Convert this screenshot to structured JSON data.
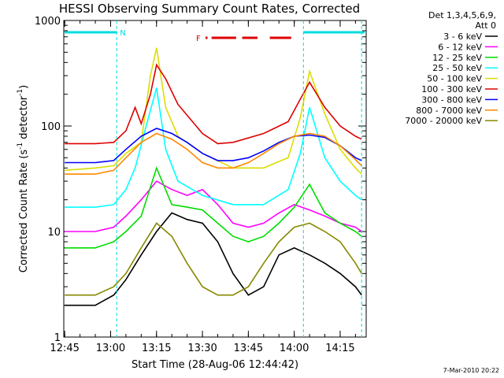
{
  "chart_data": {
    "type": "line",
    "title": "HESSI Observing Summary Count Rates, Corrected",
    "xlabel": "Start Time (28-Aug-06 12:44:42)",
    "ylabel_main": "Corrected Count Rate (s",
    "ylabel_sup1": "-1",
    "ylabel_mid": " detector",
    "ylabel_sup2": "-1",
    "ylabel_end": ")",
    "yscale": "log",
    "ylim": [
      1,
      1000
    ],
    "xlim": [
      "12:44:42",
      "14:23:30"
    ],
    "x_ticks": [
      "12:45",
      "13:00",
      "13:15",
      "13:30",
      "13:45",
      "14:00",
      "14:15"
    ],
    "y_ticks": [
      "1",
      "10",
      "100",
      "1000"
    ],
    "legend_header": [
      "Det 1,3,4,5,6,9,",
      "Att 0"
    ],
    "legend": [
      {
        "name": "3 - 6 keV",
        "color": "#000000"
      },
      {
        "name": "6 - 12 keV",
        "color": "#ff00ff"
      },
      {
        "name": "12 - 25 keV",
        "color": "#00dd00"
      },
      {
        "name": "25 - 50 keV",
        "color": "#00ffff"
      },
      {
        "name": "50 - 100 keV",
        "color": "#dddd00"
      },
      {
        "name": "100 - 300 keV",
        "color": "#dd0000"
      },
      {
        "name": "300 - 800 keV",
        "color": "#0000ff"
      },
      {
        "name": "800 - 7000 keV",
        "color": "#ff8800"
      },
      {
        "name": "7000 - 20000 keV",
        "color": "#888800"
      }
    ],
    "annotations": {
      "night_label": "N",
      "night_segments": [
        [
          "12:45",
          "13:02"
        ],
        [
          "14:03",
          "14:23"
        ]
      ],
      "flare_label": "F",
      "flare_segments": [
        [
          "13:31",
          "13:31:40"
        ],
        [
          "13:33",
          "13:41"
        ],
        [
          "13:43",
          "13:48"
        ],
        [
          "13:52",
          "13:59"
        ]
      ],
      "night_lines": [
        "13:02",
        "14:03",
        "14:22"
      ]
    },
    "series": [
      {
        "name": "3 - 6 keV",
        "color": "#000000",
        "x": [
          "12:45",
          "12:55",
          "13:01",
          "13:05",
          "13:10",
          "13:15",
          "13:20",
          "13:25",
          "13:30",
          "13:35",
          "13:40",
          "13:45",
          "13:50",
          "13:55",
          "14:00",
          "14:05",
          "14:10",
          "14:15",
          "14:20",
          "14:22"
        ],
        "y": [
          2,
          2,
          2.5,
          3.5,
          6,
          10,
          15,
          13,
          12,
          8,
          4,
          2.5,
          3,
          6,
          7,
          6,
          5,
          4,
          3,
          2.5
        ]
      },
      {
        "name": "6 - 12 keV",
        "color": "#ff00ff",
        "x": [
          "12:45",
          "12:55",
          "13:01",
          "13:05",
          "13:10",
          "13:15",
          "13:20",
          "13:25",
          "13:30",
          "13:35",
          "13:40",
          "13:45",
          "13:50",
          "13:55",
          "14:00",
          "14:05",
          "14:10",
          "14:15",
          "14:20",
          "14:22"
        ],
        "y": [
          10,
          10,
          11,
          14,
          20,
          30,
          25,
          22,
          25,
          18,
          12,
          11,
          12,
          15,
          18,
          16,
          14,
          12,
          11,
          10
        ]
      },
      {
        "name": "12 - 25 keV",
        "color": "#00dd00",
        "x": [
          "12:45",
          "12:55",
          "13:01",
          "13:05",
          "13:10",
          "13:15",
          "13:20",
          "13:25",
          "13:30",
          "13:35",
          "13:40",
          "13:45",
          "13:50",
          "13:55",
          "14:00",
          "14:05",
          "14:10",
          "14:15",
          "14:20",
          "14:22"
        ],
        "y": [
          7,
          7,
          8,
          10,
          14,
          40,
          18,
          17,
          16,
          12,
          9,
          8,
          9,
          12,
          17,
          28,
          15,
          12,
          10,
          9
        ]
      },
      {
        "name": "25 - 50 keV",
        "color": "#00ffff",
        "x": [
          "12:45",
          "12:55",
          "13:01",
          "13:05",
          "13:08",
          "13:12",
          "13:15",
          "13:18",
          "13:22",
          "13:30",
          "13:40",
          "13:50",
          "13:58",
          "14:02",
          "14:05",
          "14:10",
          "14:15",
          "14:20",
          "14:22"
        ],
        "y": [
          17,
          17,
          18,
          25,
          40,
          110,
          230,
          60,
          30,
          22,
          18,
          18,
          25,
          55,
          150,
          50,
          30,
          22,
          20
        ]
      },
      {
        "name": "50 - 100 keV",
        "color": "#dddd00",
        "x": [
          "12:45",
          "12:55",
          "13:01",
          "13:05",
          "13:10",
          "13:13",
          "13:15",
          "13:18",
          "13:22",
          "13:30",
          "13:40",
          "13:50",
          "13:58",
          "14:02",
          "14:05",
          "14:10",
          "14:15",
          "14:20",
          "14:22"
        ],
        "y": [
          38,
          40,
          42,
          55,
          70,
          300,
          550,
          150,
          80,
          55,
          40,
          40,
          50,
          120,
          330,
          130,
          60,
          40,
          35
        ]
      },
      {
        "name": "100 - 300 keV",
        "color": "#dd0000",
        "x": [
          "12:45",
          "12:55",
          "13:01",
          "13:05",
          "13:08",
          "13:10",
          "13:13",
          "13:15",
          "13:18",
          "13:22",
          "13:30",
          "13:35",
          "13:40",
          "13:50",
          "13:58",
          "14:02",
          "14:05",
          "14:10",
          "14:15",
          "14:20",
          "14:22"
        ],
        "y": [
          68,
          68,
          70,
          90,
          150,
          105,
          200,
          380,
          280,
          160,
          85,
          68,
          70,
          85,
          110,
          180,
          260,
          150,
          100,
          80,
          75
        ]
      },
      {
        "name": "300 - 800 keV",
        "color": "#0000ff",
        "x": [
          "12:45",
          "12:55",
          "13:01",
          "13:05",
          "13:10",
          "13:15",
          "13:20",
          "13:25",
          "13:30",
          "13:35",
          "13:40",
          "13:45",
          "13:50",
          "13:55",
          "14:00",
          "14:05",
          "14:10",
          "14:15",
          "14:20",
          "14:22"
        ],
        "y": [
          45,
          45,
          47,
          60,
          80,
          95,
          85,
          70,
          55,
          47,
          47,
          50,
          58,
          70,
          80,
          82,
          78,
          65,
          50,
          47
        ]
      },
      {
        "name": "800 - 7000 keV",
        "color": "#ff8800",
        "x": [
          "12:45",
          "12:55",
          "13:01",
          "13:05",
          "13:10",
          "13:15",
          "13:20",
          "13:25",
          "13:30",
          "13:35",
          "13:40",
          "13:45",
          "13:50",
          "13:55",
          "14:00",
          "14:05",
          "14:10",
          "14:15",
          "14:20",
          "14:22"
        ],
        "y": [
          35,
          35,
          38,
          50,
          70,
          85,
          75,
          60,
          45,
          40,
          40,
          45,
          55,
          68,
          80,
          85,
          80,
          65,
          48,
          42
        ]
      },
      {
        "name": "7000 - 20000 keV",
        "color": "#888800",
        "x": [
          "12:45",
          "12:55",
          "13:01",
          "13:05",
          "13:10",
          "13:15",
          "13:20",
          "13:25",
          "13:30",
          "13:35",
          "13:40",
          "13:45",
          "13:50",
          "13:55",
          "14:00",
          "14:05",
          "14:10",
          "14:15",
          "14:20",
          "14:22"
        ],
        "y": [
          2.5,
          2.5,
          3,
          4,
          7,
          12,
          9,
          5,
          3,
          2.5,
          2.5,
          3,
          5,
          8,
          11,
          12,
          10,
          8,
          5,
          4
        ]
      }
    ]
  },
  "footer_date": "7-Mar-2010 20:22"
}
